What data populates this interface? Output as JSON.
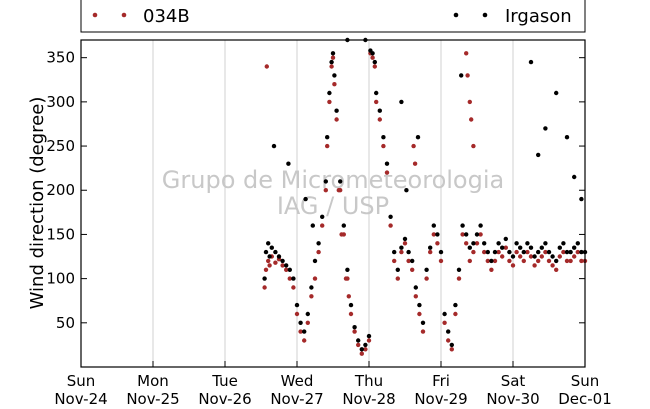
{
  "chart_data": {
    "type": "scatter",
    "title": "",
    "xlabel": "",
    "ylabel": "Wind direction (degree)",
    "ylim": [
      0,
      370
    ],
    "xlim": [
      0,
      7
    ],
    "yticks": [
      50,
      100,
      150,
      200,
      250,
      300,
      350
    ],
    "xticks": [
      {
        "day": "Sun",
        "date": "Nov-24"
      },
      {
        "day": "Mon",
        "date": "Nov-25"
      },
      {
        "day": "Tue",
        "date": "Nov-26"
      },
      {
        "day": "Wed",
        "date": "Nov-27"
      },
      {
        "day": "Thu",
        "date": "Nov-28"
      },
      {
        "day": "Fri",
        "date": "Nov-29"
      },
      {
        "day": "Sat",
        "date": "Nov-30"
      },
      {
        "day": "Sun",
        "date": "Dec-01"
      }
    ],
    "grid": "vertical",
    "legend_placement": "top, outside plot",
    "watermark": [
      "Grupo de Micrometeorologia",
      "IAG / USP"
    ],
    "series": [
      {
        "name": "034B",
        "color": "#a52a2a",
        "x": [
          2.55,
          2.57,
          2.6,
          2.62,
          2.65,
          2.7,
          2.75,
          2.8,
          2.85,
          2.9,
          2.95,
          3.0,
          3.05,
          3.1,
          3.15,
          3.2,
          3.25,
          3.3,
          3.35,
          3.4,
          3.42,
          3.45,
          3.48,
          3.5,
          3.52,
          3.55,
          3.6,
          3.65,
          3.7,
          3.75,
          3.8,
          3.85,
          3.9,
          3.95,
          4.0,
          4.02,
          4.05,
          4.08,
          4.1,
          4.15,
          4.2,
          4.25,
          4.3,
          4.35,
          4.4,
          4.45,
          4.5,
          4.55,
          4.6,
          4.65,
          4.7,
          4.75,
          4.8,
          4.85,
          4.9,
          4.95,
          5.0,
          5.05,
          5.1,
          5.15,
          5.2,
          5.25,
          5.3,
          5.35,
          5.4,
          5.45,
          5.5,
          5.55,
          5.6,
          5.65,
          5.7,
          5.75,
          5.8,
          5.85,
          5.9,
          5.95,
          6.0,
          6.05,
          6.1,
          6.15,
          6.2,
          6.25,
          6.3,
          6.35,
          6.4,
          6.45,
          6.5,
          6.55,
          6.6,
          6.65,
          6.7,
          6.75,
          6.8,
          6.85,
          6.9,
          6.95,
          7.0,
          2.58,
          3.58,
          3.62,
          3.68,
          3.72,
          4.62,
          4.64,
          5.35,
          5.37,
          5.4,
          5.42,
          5.45
        ],
        "y": [
          90,
          110,
          120,
          115,
          125,
          118,
          122,
          115,
          110,
          100,
          90,
          60,
          40,
          30,
          50,
          80,
          100,
          130,
          160,
          200,
          250,
          300,
          340,
          350,
          320,
          280,
          200,
          150,
          100,
          60,
          40,
          25,
          15,
          20,
          30,
          355,
          350,
          340,
          300,
          280,
          250,
          220,
          160,
          120,
          100,
          130,
          140,
          120,
          110,
          80,
          60,
          40,
          100,
          130,
          150,
          140,
          120,
          50,
          30,
          20,
          60,
          100,
          150,
          140,
          120,
          130,
          140,
          150,
          130,
          120,
          110,
          120,
          130,
          125,
          135,
          120,
          115,
          130,
          125,
          120,
          130,
          125,
          115,
          120,
          125,
          130,
          120,
          115,
          110,
          125,
          130,
          120,
          120,
          125,
          130,
          120,
          120,
          340,
          200,
          150,
          100,
          80,
          250,
          230,
          355,
          330,
          300,
          280,
          250
        ]
      },
      {
        "name": "Irgason",
        "color": "#000000",
        "x": [
          2.55,
          2.57,
          2.6,
          2.62,
          2.65,
          2.7,
          2.75,
          2.8,
          2.85,
          2.9,
          2.95,
          3.0,
          3.05,
          3.1,
          3.15,
          3.2,
          3.25,
          3.3,
          3.35,
          3.4,
          3.42,
          3.45,
          3.48,
          3.5,
          3.52,
          3.55,
          3.6,
          3.65,
          3.7,
          3.75,
          3.8,
          3.85,
          3.9,
          3.95,
          4.0,
          4.02,
          4.05,
          4.08,
          4.1,
          4.15,
          4.2,
          4.25,
          4.3,
          4.35,
          4.4,
          4.45,
          4.5,
          4.55,
          4.6,
          4.65,
          4.7,
          4.75,
          4.8,
          4.85,
          4.9,
          4.95,
          5.0,
          5.05,
          5.1,
          5.15,
          5.2,
          5.25,
          5.3,
          5.35,
          5.4,
          5.45,
          5.5,
          5.55,
          5.6,
          5.65,
          5.7,
          5.75,
          5.8,
          5.85,
          5.9,
          5.95,
          6.0,
          6.05,
          6.1,
          6.15,
          6.2,
          6.25,
          6.3,
          6.35,
          6.4,
          6.45,
          6.5,
          6.55,
          6.6,
          6.65,
          6.7,
          6.75,
          6.8,
          6.85,
          6.9,
          6.95,
          7.0,
          2.68,
          2.88,
          3.12,
          3.22,
          4.52,
          4.68,
          5.28,
          6.25,
          6.35,
          6.45,
          6.6,
          6.75,
          6.85,
          6.95,
          3.7,
          3.95,
          4.45
        ],
        "y": [
          100,
          130,
          140,
          125,
          135,
          130,
          125,
          120,
          115,
          110,
          100,
          70,
          50,
          40,
          60,
          90,
          120,
          140,
          170,
          210,
          260,
          310,
          345,
          355,
          330,
          290,
          210,
          160,
          110,
          70,
          45,
          30,
          20,
          25,
          35,
          358,
          355,
          345,
          310,
          290,
          260,
          230,
          170,
          130,
          110,
          135,
          145,
          130,
          120,
          90,
          70,
          50,
          110,
          135,
          160,
          150,
          130,
          60,
          40,
          25,
          70,
          110,
          160,
          150,
          135,
          140,
          150,
          160,
          140,
          130,
          120,
          130,
          140,
          135,
          145,
          130,
          125,
          140,
          135,
          130,
          140,
          135,
          125,
          130,
          135,
          140,
          130,
          125,
          120,
          135,
          140,
          130,
          130,
          135,
          140,
          130,
          130,
          250,
          230,
          190,
          160,
          200,
          260,
          330,
          345,
          240,
          270,
          310,
          260,
          215,
          190,
          370,
          370,
          300
        ]
      }
    ]
  }
}
